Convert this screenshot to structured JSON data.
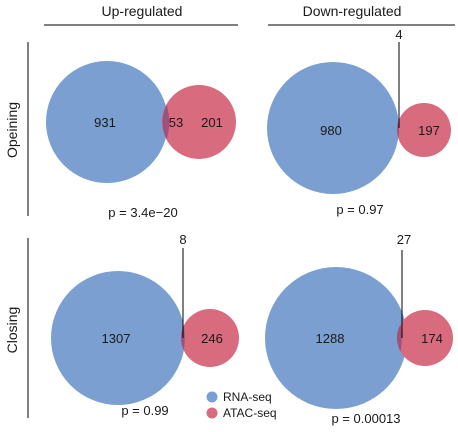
{
  "columns": [
    "Up-regulated",
    "Down-regulated"
  ],
  "rows": [
    "Opeining",
    "Closing"
  ],
  "colors": {
    "rna": "#7b9fd0",
    "atac": "#d86b7e",
    "overlap": "#8a4a7e",
    "line": "#000000"
  },
  "legend": [
    {
      "label": "RNA-seq",
      "color": "#7b9fd0"
    },
    {
      "label": "ATAC-seq",
      "color": "#d86b7e"
    }
  ],
  "panels": [
    {
      "rna_only": "931",
      "overlap": "53",
      "atac_only": "201",
      "pvalue": "p = 3.4e−20"
    },
    {
      "rna_only": "980",
      "overlap": "4",
      "atac_only": "197",
      "pvalue": "p = 0.97"
    },
    {
      "rna_only": "1307",
      "overlap": "8",
      "atac_only": "246",
      "pvalue": "p = 0.99"
    },
    {
      "rna_only": "1288",
      "overlap": "27",
      "atac_only": "174",
      "pvalue": "p = 0.00013"
    }
  ]
}
